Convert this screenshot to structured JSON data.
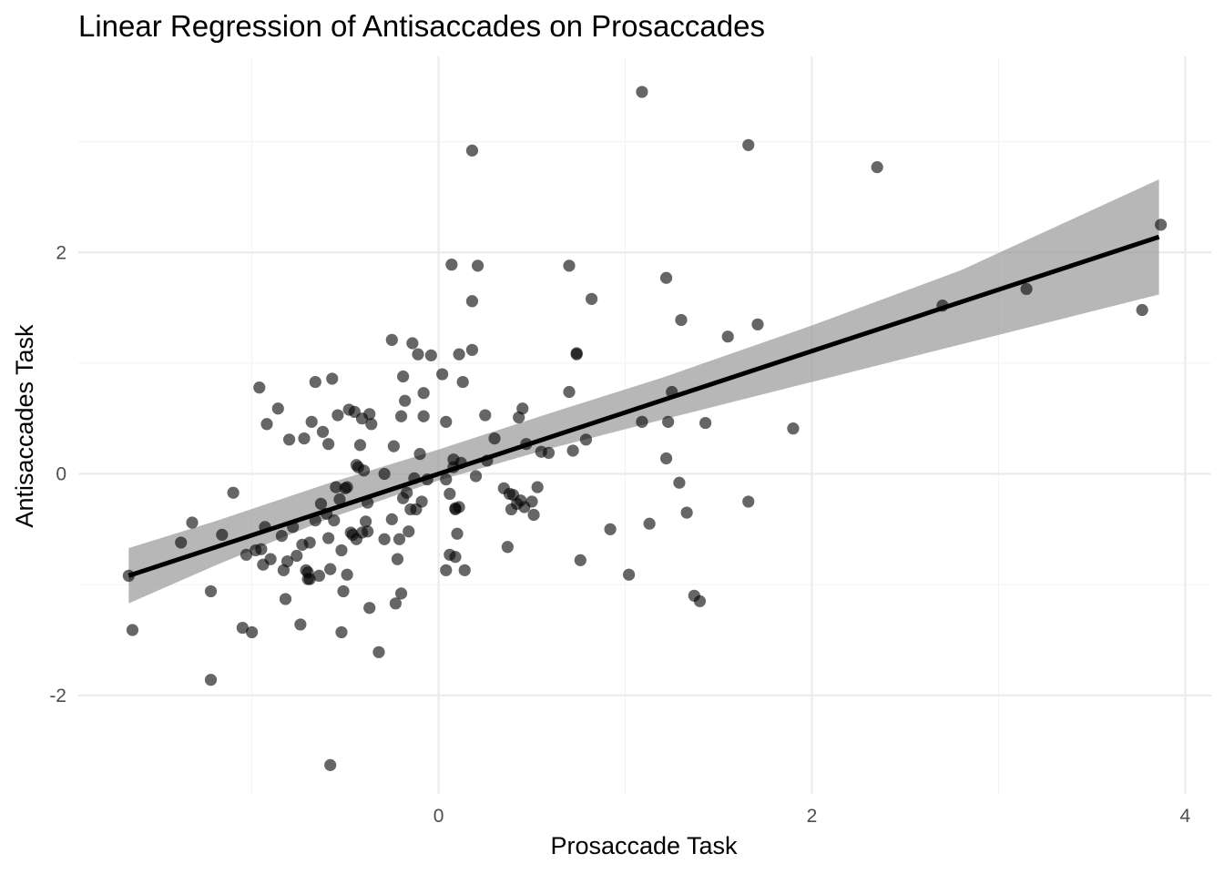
{
  "chart_data": {
    "type": "scatter",
    "title": "Linear Regression of Antisaccades on Prosaccades",
    "xlabel": "Prosaccade Task",
    "ylabel": "Antisaccades Task",
    "xlim": [
      -1.93,
      4.14
    ],
    "ylim": [
      -2.89,
      3.77
    ],
    "x_ticks": [
      0,
      2,
      4
    ],
    "y_ticks": [
      -2,
      0,
      2
    ],
    "x_tick_labels": [
      "0",
      "2",
      "4"
    ],
    "y_tick_labels": [
      "-2",
      "0",
      "2"
    ],
    "grid": true,
    "legend": "none",
    "fit_line": {
      "x": [
        -1.66,
        3.86
      ],
      "y": [
        -0.92,
        2.14
      ]
    },
    "confidence_band": {
      "x": [
        -1.66,
        -1.2,
        -0.6,
        0,
        0.6,
        1.2,
        2,
        2.8,
        3.86
      ],
      "lower": [
        -1.17,
        -0.83,
        -0.41,
        -0.06,
        0.23,
        0.49,
        0.83,
        1.17,
        1.62
      ],
      "upper": [
        -0.67,
        -0.43,
        -0.09,
        0.22,
        0.55,
        0.87,
        1.34,
        1.84,
        2.66
      ]
    },
    "points": [
      [
        -1.66,
        -0.92
      ],
      [
        -1.64,
        -1.41
      ],
      [
        -1.38,
        -0.62
      ],
      [
        -1.32,
        -0.44
      ],
      [
        -1.22,
        -1.86
      ],
      [
        -1.22,
        -1.06
      ],
      [
        -1.16,
        -0.55
      ],
      [
        -1.1,
        -0.17
      ],
      [
        -1.05,
        -1.39
      ],
      [
        -1.03,
        -0.73
      ],
      [
        -1.0,
        -1.43
      ],
      [
        -0.98,
        -0.69
      ],
      [
        -0.96,
        0.78
      ],
      [
        -0.95,
        -0.68
      ],
      [
        -0.94,
        -0.82
      ],
      [
        -0.92,
        0.45
      ],
      [
        -0.93,
        -0.48
      ],
      [
        -0.9,
        -0.77
      ],
      [
        -0.86,
        0.59
      ],
      [
        -0.84,
        -0.56
      ],
      [
        -0.83,
        -0.87
      ],
      [
        -0.82,
        -1.13
      ],
      [
        -0.81,
        -0.79
      ],
      [
        -0.8,
        0.31
      ],
      [
        -0.78,
        -0.48
      ],
      [
        -0.76,
        -0.74
      ],
      [
        -0.74,
        -1.36
      ],
      [
        -0.73,
        -0.64
      ],
      [
        -0.72,
        0.32
      ],
      [
        -0.71,
        -0.87
      ],
      [
        -0.7,
        -0.95
      ],
      [
        -0.7,
        -0.89
      ],
      [
        -0.69,
        -0.95
      ],
      [
        -0.69,
        -0.62
      ],
      [
        -0.68,
        0.47
      ],
      [
        -0.66,
        0.83
      ],
      [
        -0.66,
        -0.42
      ],
      [
        -0.64,
        -0.92
      ],
      [
        -0.63,
        -0.27
      ],
      [
        -0.62,
        0.38
      ],
      [
        -0.6,
        -0.36
      ],
      [
        -0.59,
        0.27
      ],
      [
        -0.59,
        -0.58
      ],
      [
        -0.58,
        -0.86
      ],
      [
        -0.58,
        -2.63
      ],
      [
        -0.57,
        0.86
      ],
      [
        -0.56,
        -0.42
      ],
      [
        -0.55,
        -0.12
      ],
      [
        -0.54,
        0.53
      ],
      [
        -0.53,
        -0.23
      ],
      [
        -0.52,
        -1.43
      ],
      [
        -0.52,
        -0.69
      ],
      [
        -0.51,
        -1.06
      ],
      [
        -0.5,
        -0.13
      ],
      [
        -0.49,
        -0.12
      ],
      [
        -0.48,
        0.58
      ],
      [
        -0.49,
        -0.91
      ],
      [
        -0.47,
        -0.53
      ],
      [
        -0.46,
        -0.55
      ],
      [
        -0.45,
        0.56
      ],
      [
        -0.44,
        0.08
      ],
      [
        -0.44,
        -0.59
      ],
      [
        -0.43,
        0.06
      ],
      [
        -0.42,
        0.26
      ],
      [
        -0.41,
        -0.53
      ],
      [
        -0.41,
        0.5
      ],
      [
        -0.4,
        0.03
      ],
      [
        -0.39,
        -0.43
      ],
      [
        -0.38,
        -0.52
      ],
      [
        -0.38,
        -0.26
      ],
      [
        -0.37,
        -1.21
      ],
      [
        -0.37,
        0.54
      ],
      [
        -0.36,
        0.45
      ],
      [
        -0.32,
        -1.61
      ],
      [
        -0.29,
        0.0
      ],
      [
        -0.29,
        -0.59
      ],
      [
        -0.25,
        1.21
      ],
      [
        -0.25,
        -0.41
      ],
      [
        -0.24,
        0.25
      ],
      [
        -0.23,
        -1.17
      ],
      [
        -0.22,
        -0.77
      ],
      [
        -0.21,
        -0.59
      ],
      [
        -0.2,
        -1.08
      ],
      [
        -0.2,
        0.52
      ],
      [
        -0.19,
        -0.22
      ],
      [
        -0.19,
        0.88
      ],
      [
        -0.18,
        0.66
      ],
      [
        -0.17,
        -0.17
      ],
      [
        -0.16,
        -0.52
      ],
      [
        -0.15,
        -0.32
      ],
      [
        -0.14,
        1.18
      ],
      [
        -0.13,
        -0.04
      ],
      [
        -0.12,
        -0.32
      ],
      [
        -0.11,
        1.08
      ],
      [
        -0.1,
        0.18
      ],
      [
        -0.09,
        -0.25
      ],
      [
        -0.08,
        0.73
      ],
      [
        -0.08,
        0.52
      ],
      [
        -0.06,
        -0.05
      ],
      [
        -0.04,
        1.07
      ],
      [
        0.02,
        0.9
      ],
      [
        0.04,
        -0.87
      ],
      [
        0.04,
        -0.05
      ],
      [
        0.04,
        0.47
      ],
      [
        0.06,
        -0.73
      ],
      [
        0.06,
        -0.18
      ],
      [
        0.07,
        1.89
      ],
      [
        0.08,
        0.06
      ],
      [
        0.08,
        0.13
      ],
      [
        0.09,
        -0.75
      ],
      [
        0.09,
        -0.31
      ],
      [
        0.09,
        -0.32
      ],
      [
        0.1,
        -0.54
      ],
      [
        0.11,
        -0.3
      ],
      [
        0.11,
        1.08
      ],
      [
        0.12,
        0.1
      ],
      [
        0.13,
        0.83
      ],
      [
        0.14,
        -0.87
      ],
      [
        0.18,
        2.92
      ],
      [
        0.18,
        1.56
      ],
      [
        0.18,
        1.12
      ],
      [
        0.2,
        -0.02
      ],
      [
        0.21,
        1.88
      ],
      [
        0.25,
        0.53
      ],
      [
        0.26,
        0.12
      ],
      [
        0.3,
        0.32
      ],
      [
        0.35,
        -0.13
      ],
      [
        0.37,
        -0.66
      ],
      [
        0.38,
        -0.18
      ],
      [
        0.39,
        -0.32
      ],
      [
        0.4,
        -0.19
      ],
      [
        0.42,
        -0.27
      ],
      [
        0.43,
        0.51
      ],
      [
        0.44,
        -0.24
      ],
      [
        0.45,
        0.59
      ],
      [
        0.46,
        -0.3
      ],
      [
        0.47,
        0.27
      ],
      [
        0.5,
        -0.25
      ],
      [
        0.51,
        -0.37
      ],
      [
        0.53,
        -0.12
      ],
      [
        0.55,
        0.2
      ],
      [
        0.59,
        0.19
      ],
      [
        0.7,
        1.88
      ],
      [
        0.7,
        0.74
      ],
      [
        0.72,
        0.21
      ],
      [
        0.74,
        1.08
      ],
      [
        0.74,
        1.09
      ],
      [
        0.76,
        -0.78
      ],
      [
        0.79,
        0.31
      ],
      [
        0.82,
        1.58
      ],
      [
        0.92,
        -0.5
      ],
      [
        1.02,
        -0.91
      ],
      [
        1.09,
        0.47
      ],
      [
        1.09,
        3.45
      ],
      [
        1.13,
        -0.45
      ],
      [
        1.22,
        1.77
      ],
      [
        1.22,
        0.14
      ],
      [
        1.23,
        0.47
      ],
      [
        1.25,
        0.74
      ],
      [
        1.29,
        -0.08
      ],
      [
        1.3,
        1.39
      ],
      [
        1.33,
        -0.35
      ],
      [
        1.37,
        -1.1
      ],
      [
        1.4,
        -1.15
      ],
      [
        1.43,
        0.46
      ],
      [
        1.55,
        1.24
      ],
      [
        1.66,
        -0.25
      ],
      [
        1.66,
        2.97
      ],
      [
        1.71,
        1.35
      ],
      [
        1.9,
        0.41
      ],
      [
        2.35,
        2.77
      ],
      [
        2.7,
        1.52
      ],
      [
        3.15,
        1.67
      ],
      [
        3.77,
        1.48
      ],
      [
        3.87,
        2.25
      ]
    ]
  }
}
